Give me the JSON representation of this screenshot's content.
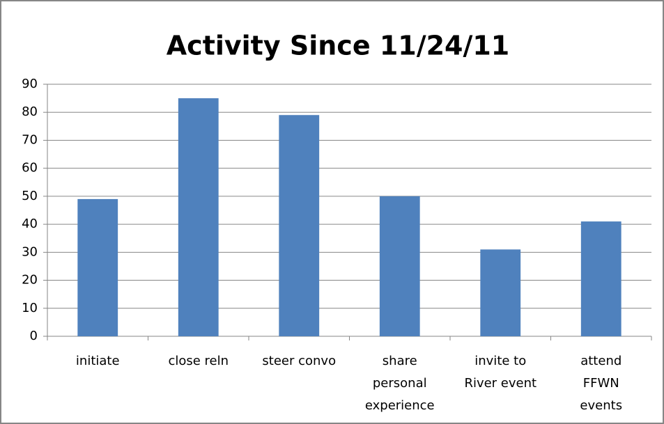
{
  "chart_data": {
    "type": "bar",
    "title": "Activity Since 11/24/11",
    "categories": [
      "initiate",
      "close reln",
      "steer convo",
      "share\npersonal\nexperience",
      "invite to\nRiver event",
      "attend\nFFWN\nevents"
    ],
    "values": [
      49,
      85,
      79,
      50,
      31,
      41
    ],
    "color": "#4f81bd",
    "ylim": [
      0,
      90
    ],
    "yticks": [
      0,
      10,
      20,
      30,
      40,
      50,
      60,
      70,
      80,
      90
    ],
    "grid": true
  }
}
